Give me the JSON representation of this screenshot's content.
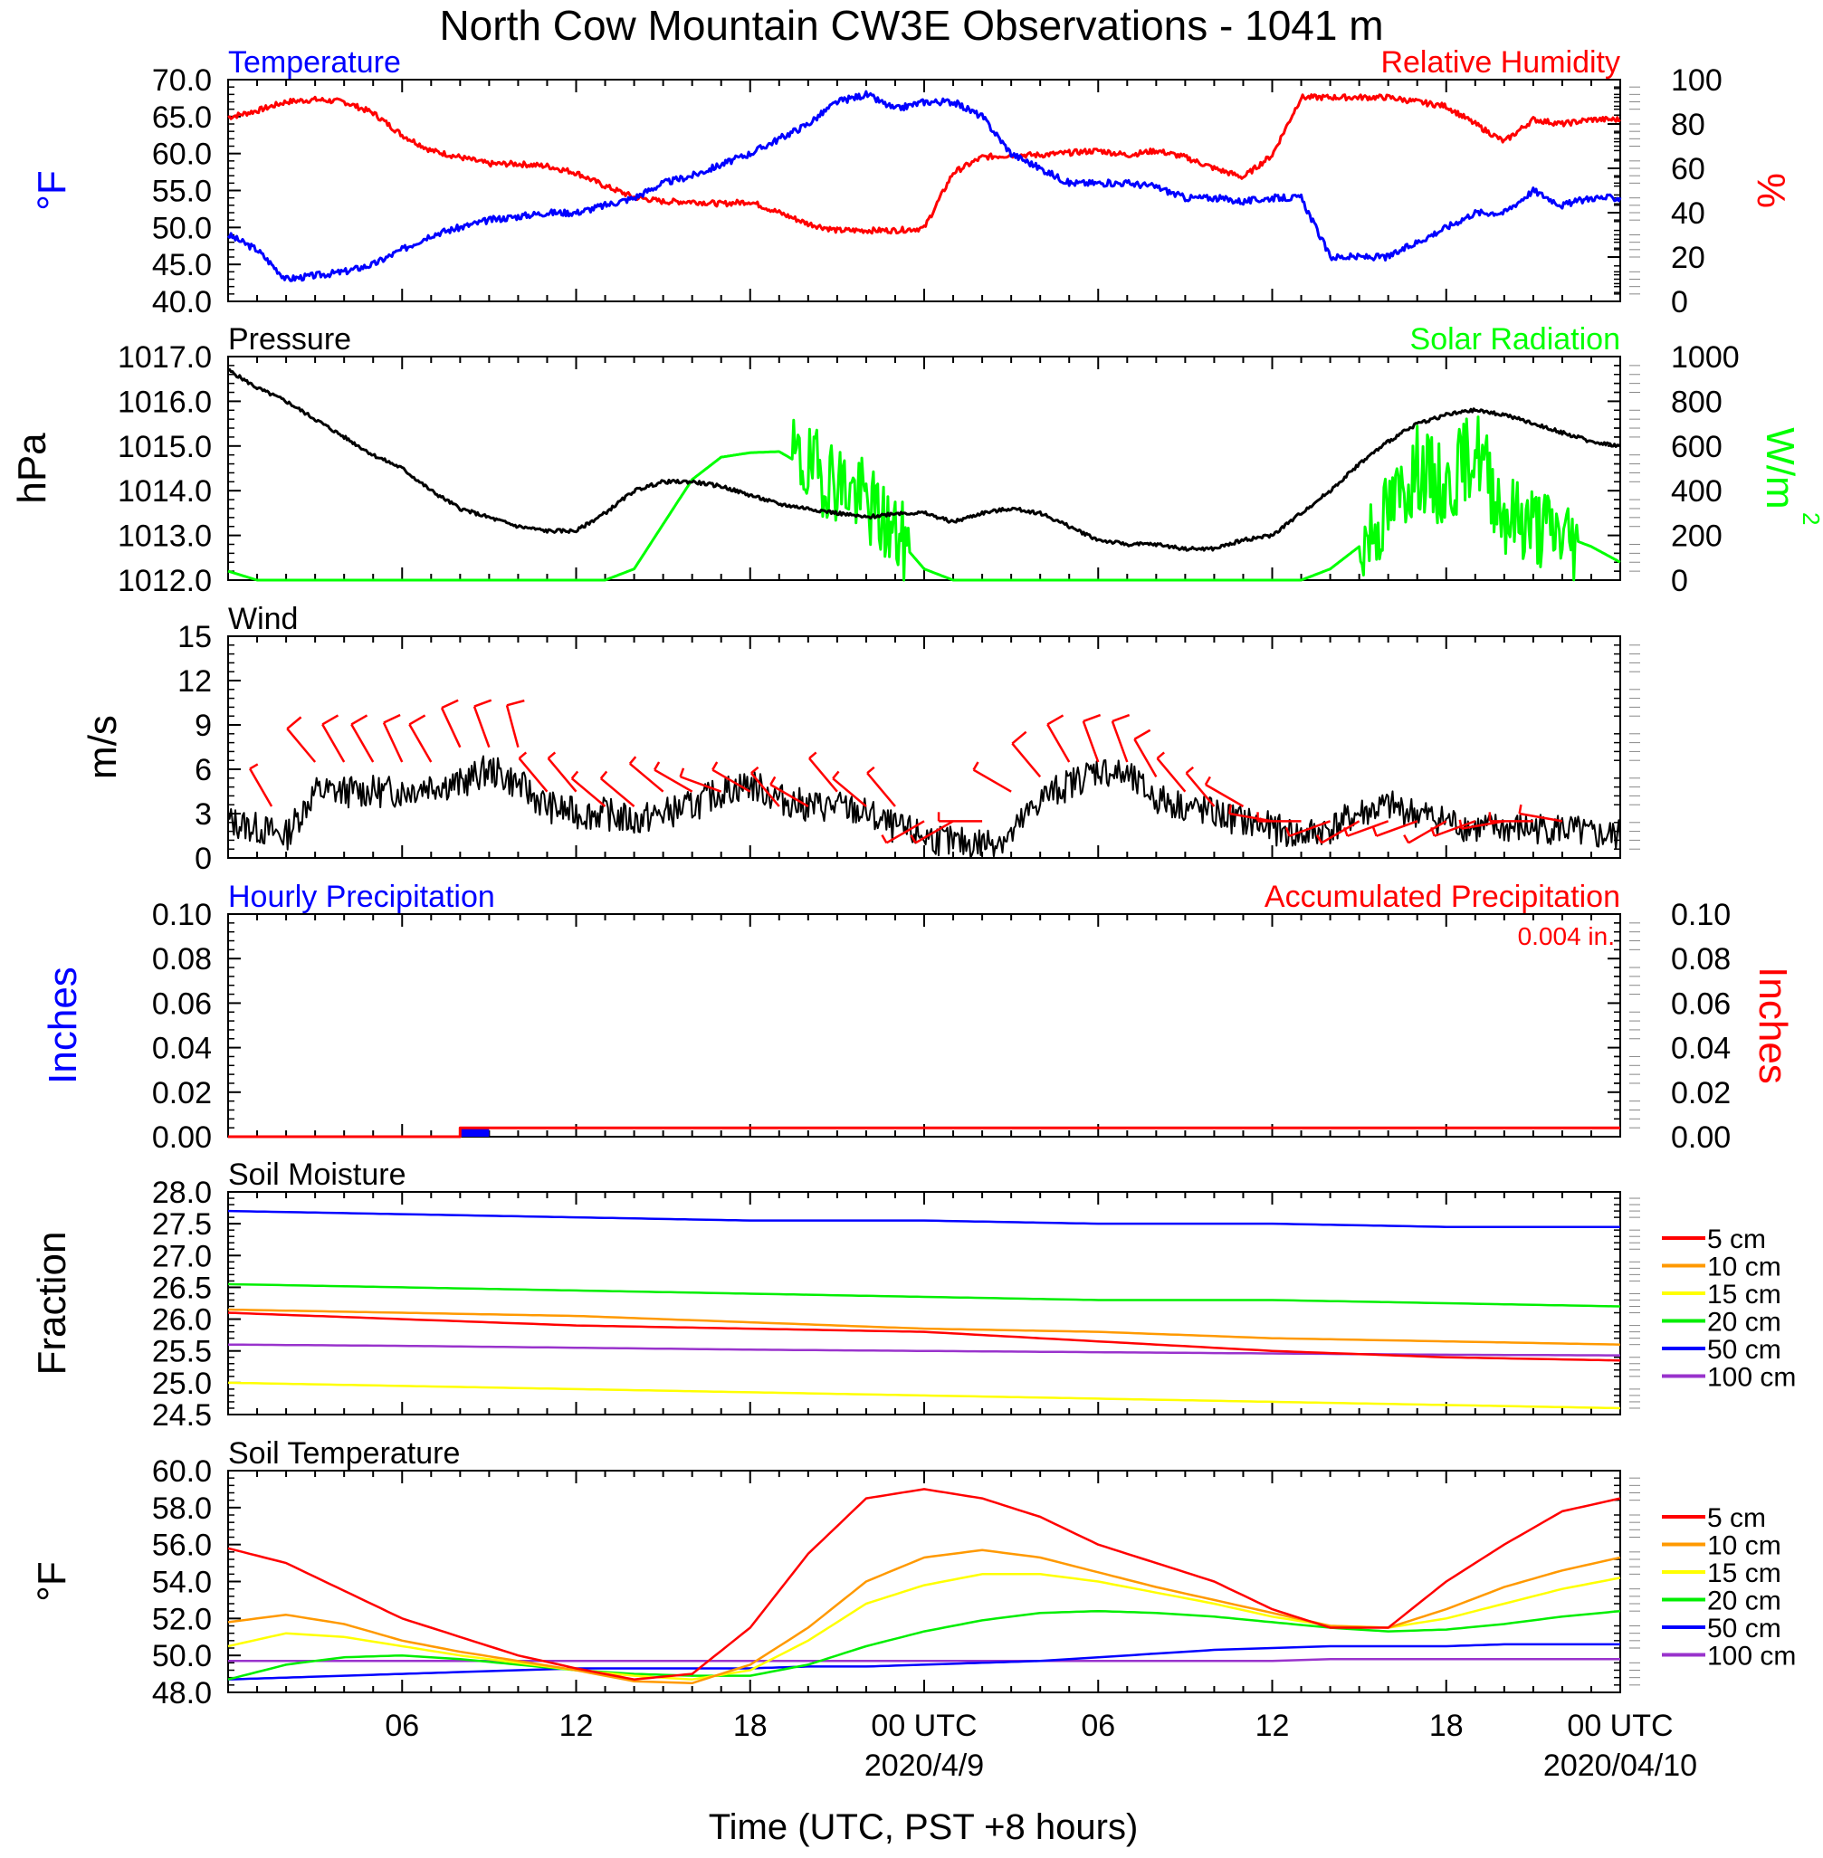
{
  "title": "North Cow Mountain CW3E Observations - 1041 m",
  "x_axis": {
    "label": "Time (UTC, PST +8 hours)",
    "ticks": [
      "06",
      "12",
      "18",
      "00 UTC",
      "06",
      "12",
      "18",
      "00 UTC"
    ],
    "date_labels": [
      "2020/4/9",
      "2020/04/10"
    ]
  },
  "colors": {
    "temperature": "#0000ff",
    "humidity": "#ff0000",
    "pressure": "#000000",
    "solar": "#00ff00",
    "wind": "#000000",
    "barb": "#ff0000",
    "hourly": "#0000ff",
    "accum": "#ff0000",
    "soil_5": "#ff0000",
    "soil_10": "#ff9900",
    "soil_15": "#ffff00",
    "soil_20": "#00ee00",
    "soil_50": "#0000ff",
    "soil_100": "#9933cc"
  },
  "chart_data": [
    {
      "type": "line",
      "left_title": "Temperature",
      "right_title": "Relative Humidity",
      "ylabel": "°F",
      "ylabel_right": "%",
      "yticks": [
        "70.0",
        "65.0",
        "60.0",
        "55.0",
        "50.0",
        "45.0",
        "40.0"
      ],
      "yticks_right": [
        "100",
        "80",
        "60",
        "40",
        "20",
        "0"
      ],
      "ylim": [
        40,
        70
      ],
      "ylim_right": [
        0,
        100
      ],
      "x_hours": [
        0,
        1,
        2,
        3,
        4,
        5,
        6,
        7,
        8,
        9,
        10,
        11,
        12,
        13,
        14,
        15,
        16,
        17,
        18,
        19,
        20,
        21,
        22,
        23,
        24,
        25,
        26,
        27,
        28,
        29,
        30,
        31,
        32,
        33,
        34,
        35,
        36,
        37,
        38,
        39,
        40,
        41,
        42,
        43,
        44,
        45,
        46,
        47,
        48
      ],
      "series": [
        {
          "name": "Temperature",
          "axis": "left",
          "values": [
            49,
            47,
            43,
            43.5,
            44,
            45,
            47,
            49,
            50,
            51,
            51.5,
            52,
            52,
            53,
            54,
            56,
            57,
            58.5,
            60,
            62,
            64,
            67,
            68,
            66,
            67,
            67,
            65,
            60,
            58,
            56,
            56,
            56,
            55.5,
            54,
            54,
            53.5,
            54,
            54,
            46,
            46,
            46,
            48,
            50,
            52,
            52,
            55,
            53,
            54,
            54
          ]
        },
        {
          "name": "Relative Humidity",
          "axis": "right",
          "values": [
            83,
            86,
            90,
            91,
            90,
            85,
            75,
            68,
            65,
            62,
            62,
            61,
            58,
            52,
            47,
            45,
            45,
            44,
            45,
            40,
            35,
            32,
            32,
            32,
            33,
            58,
            65,
            66,
            66,
            67,
            68,
            66,
            68,
            65,
            60,
            56,
            66,
            92,
            92,
            92,
            92,
            90,
            88,
            80,
            72,
            82,
            80,
            82,
            82
          ]
        }
      ]
    },
    {
      "type": "line",
      "left_title": "Pressure",
      "right_title": "Solar Radiation",
      "ylabel": "hPa",
      "ylabel_right": "W/m2",
      "yticks": [
        "1017.0",
        "1016.0",
        "1015.0",
        "1014.0",
        "1013.0",
        "1012.0"
      ],
      "yticks_right": [
        "1000",
        "800",
        "600",
        "400",
        "200",
        "0"
      ],
      "ylim": [
        1012,
        1017
      ],
      "ylim_right": [
        0,
        1000
      ],
      "x_hours": [
        0,
        1,
        2,
        3,
        4,
        5,
        6,
        7,
        8,
        9,
        10,
        11,
        12,
        13,
        14,
        15,
        16,
        17,
        18,
        19,
        20,
        21,
        22,
        23,
        24,
        25,
        26,
        27,
        28,
        29,
        30,
        31,
        32,
        33,
        34,
        35,
        36,
        37,
        38,
        39,
        40,
        41,
        42,
        43,
        44,
        45,
        46,
        47,
        48
      ],
      "series": [
        {
          "name": "Pressure",
          "axis": "left",
          "values": [
            1016.7,
            1016.3,
            1016,
            1015.6,
            1015.2,
            1014.8,
            1014.5,
            1014,
            1013.6,
            1013.4,
            1013.2,
            1013.1,
            1013.1,
            1013.5,
            1014,
            1014.2,
            1014.2,
            1014.1,
            1013.9,
            1013.7,
            1013.6,
            1013.5,
            1013.4,
            1013.5,
            1013.5,
            1013.3,
            1013.5,
            1013.6,
            1013.5,
            1013.2,
            1012.9,
            1012.8,
            1012.8,
            1012.7,
            1012.7,
            1012.9,
            1013.0,
            1013.5,
            1014,
            1014.6,
            1015.1,
            1015.5,
            1015.7,
            1015.8,
            1015.7,
            1015.5,
            1015.3,
            1015.1,
            1015
          ]
        },
        {
          "name": "Solar Radiation",
          "axis": "right",
          "values": [
            40,
            0,
            0,
            0,
            0,
            0,
            0,
            0,
            0,
            0,
            0,
            0,
            0,
            0,
            50,
            250,
            450,
            550,
            570,
            575,
            500,
            450,
            350,
            200,
            50,
            0,
            0,
            0,
            0,
            0,
            0,
            0,
            0,
            0,
            0,
            0,
            0,
            0,
            50,
            150,
            300,
            500,
            400,
            600,
            300,
            250,
            200,
            150,
            80
          ]
        }
      ]
    },
    {
      "type": "line",
      "left_title": "Wind",
      "ylabel": "m/s",
      "yticks": [
        "15",
        "12",
        "9",
        "6",
        "3",
        "0"
      ],
      "ylim": [
        0,
        15
      ],
      "x_hours": [
        0,
        1,
        2,
        3,
        4,
        5,
        6,
        7,
        8,
        9,
        10,
        11,
        12,
        13,
        14,
        15,
        16,
        17,
        18,
        19,
        20,
        21,
        22,
        23,
        24,
        25,
        26,
        27,
        28,
        29,
        30,
        31,
        32,
        33,
        34,
        35,
        36,
        37,
        38,
        39,
        40,
        41,
        42,
        43,
        44,
        45,
        46,
        47,
        48
      ],
      "series": [
        {
          "name": "Wind speed",
          "values": [
            2.5,
            2,
            1.5,
            4.5,
            4.5,
            4.5,
            4.5,
            5,
            5,
            6,
            5,
            3.5,
            3,
            3,
            2.5,
            3,
            3.5,
            4.5,
            5,
            4,
            3.5,
            3.5,
            3,
            2,
            1.5,
            1,
            1,
            1.5,
            4,
            5,
            6,
            5.5,
            4,
            3.5,
            3,
            2.5,
            2,
            1.5,
            2,
            3,
            3.5,
            3,
            2.5,
            2,
            2,
            2,
            2,
            1.5,
            1.5
          ]
        }
      ]
    },
    {
      "type": "line",
      "left_title": "Hourly Precipitation",
      "right_title": "Accumulated Precipitation",
      "annotation": "0.004 in.",
      "ylabel": "Inches",
      "ylabel_right": "Inches",
      "yticks": [
        "0.10",
        "0.08",
        "0.06",
        "0.04",
        "0.02",
        "0.00"
      ],
      "yticks_right": [
        "0.10",
        "0.08",
        "0.06",
        "0.04",
        "0.02",
        "0.00"
      ],
      "ylim": [
        0,
        0.1
      ],
      "hourly": {
        "start_hour": 8,
        "end_hour": 9,
        "value": 0.004
      },
      "accumulated": {
        "x_hours": [
          0,
          8,
          8,
          48
        ],
        "values": [
          0,
          0,
          0.004,
          0.004
        ]
      }
    },
    {
      "type": "line",
      "left_title": "Soil Moisture",
      "ylabel": "Fraction",
      "yticks": [
        "28.0",
        "27.5",
        "27.0",
        "26.5",
        "26.0",
        "25.5",
        "25.0",
        "24.5"
      ],
      "ylim": [
        24.5,
        28
      ],
      "x_hours": [
        0,
        6,
        12,
        18,
        24,
        30,
        36,
        42,
        48
      ],
      "series": [
        {
          "name": "5 cm",
          "values": [
            26.1,
            26.0,
            25.9,
            25.85,
            25.8,
            25.65,
            25.5,
            25.4,
            25.35
          ]
        },
        {
          "name": "10 cm",
          "values": [
            26.15,
            26.1,
            26.05,
            25.95,
            25.85,
            25.8,
            25.7,
            25.65,
            25.6
          ]
        },
        {
          "name": "15 cm",
          "values": [
            25.0,
            24.95,
            24.9,
            24.85,
            24.8,
            24.75,
            24.7,
            24.65,
            24.6
          ]
        },
        {
          "name": "20 cm",
          "values": [
            26.55,
            26.5,
            26.45,
            26.4,
            26.35,
            26.3,
            26.3,
            26.25,
            26.2
          ]
        },
        {
          "name": "50 cm",
          "values": [
            27.7,
            27.65,
            27.6,
            27.55,
            27.55,
            27.5,
            27.5,
            27.45,
            27.45
          ]
        },
        {
          "name": "100 cm",
          "values": [
            25.6,
            25.58,
            25.55,
            25.52,
            25.5,
            25.48,
            25.46,
            25.44,
            25.43
          ]
        }
      ]
    },
    {
      "type": "line",
      "left_title": "Soil Temperature",
      "ylabel": "°F",
      "yticks": [
        "60.0",
        "58.0",
        "56.0",
        "54.0",
        "52.0",
        "50.0",
        "48.0"
      ],
      "ylim": [
        48,
        60
      ],
      "x_hours": [
        0,
        2,
        4,
        6,
        8,
        10,
        12,
        14,
        16,
        18,
        20,
        22,
        24,
        26,
        28,
        30,
        32,
        34,
        36,
        38,
        40,
        42,
        44,
        46,
        48
      ],
      "series": [
        {
          "name": "5 cm",
          "values": [
            55.8,
            55,
            53.5,
            52,
            51,
            50,
            49.3,
            48.7,
            49,
            51.5,
            55.5,
            58.5,
            59,
            58.5,
            57.5,
            56,
            55,
            54,
            52.5,
            51.5,
            51.5,
            54,
            56,
            57.8,
            58.5
          ]
        },
        {
          "name": "10 cm",
          "values": [
            51.8,
            52.2,
            51.7,
            50.8,
            50.2,
            49.7,
            49.2,
            48.6,
            48.5,
            49.5,
            51.5,
            54,
            55.3,
            55.7,
            55.3,
            54.5,
            53.7,
            53,
            52.3,
            51.6,
            51.5,
            52.5,
            53.7,
            54.6,
            55.3
          ]
        },
        {
          "name": "15 cm",
          "values": [
            50.5,
            51.2,
            51,
            50.5,
            50,
            49.6,
            49.2,
            48.9,
            48.7,
            49.2,
            50.8,
            52.8,
            53.8,
            54.4,
            54.4,
            54,
            53.4,
            52.8,
            52.1,
            51.6,
            51.5,
            52,
            52.8,
            53.6,
            54.2
          ]
        },
        {
          "name": "20 cm",
          "values": [
            48.7,
            49.5,
            49.9,
            50,
            49.8,
            49.5,
            49.2,
            49,
            48.9,
            48.9,
            49.5,
            50.5,
            51.3,
            51.9,
            52.3,
            52.4,
            52.3,
            52.1,
            51.8,
            51.5,
            51.3,
            51.4,
            51.7,
            52.1,
            52.4
          ]
        },
        {
          "name": "50 cm",
          "values": [
            48.7,
            48.8,
            48.9,
            49,
            49.1,
            49.2,
            49.3,
            49.3,
            49.3,
            49.3,
            49.4,
            49.4,
            49.5,
            49.6,
            49.7,
            49.9,
            50.1,
            50.3,
            50.4,
            50.5,
            50.5,
            50.5,
            50.6,
            50.6,
            50.6
          ]
        },
        {
          "name": "100 cm",
          "values": [
            49.7,
            49.7,
            49.7,
            49.7,
            49.7,
            49.7,
            49.7,
            49.7,
            49.7,
            49.7,
            49.7,
            49.7,
            49.7,
            49.7,
            49.7,
            49.7,
            49.7,
            49.7,
            49.7,
            49.8,
            49.8,
            49.8,
            49.8,
            49.8,
            49.8
          ]
        }
      ]
    }
  ],
  "wind_barbs": [
    {
      "hour": 1.5,
      "dir": 330,
      "speed": 3
    },
    {
      "hour": 3,
      "dir": 320,
      "speed": 6
    },
    {
      "hour": 4,
      "dir": 330,
      "speed": 6
    },
    {
      "hour": 5,
      "dir": 330,
      "speed": 6
    },
    {
      "hour": 6,
      "dir": 335,
      "speed": 6
    },
    {
      "hour": 7,
      "dir": 330,
      "speed": 6
    },
    {
      "hour": 8,
      "dir": 335,
      "speed": 7
    },
    {
      "hour": 9,
      "dir": 340,
      "speed": 7
    },
    {
      "hour": 10,
      "dir": 345,
      "speed": 7
    },
    {
      "hour": 11,
      "dir": 320,
      "speed": 4
    },
    {
      "hour": 12,
      "dir": 320,
      "speed": 4
    },
    {
      "hour": 13,
      "dir": 310,
      "speed": 3
    },
    {
      "hour": 14,
      "dir": 310,
      "speed": 3
    },
    {
      "hour": 15,
      "dir": 310,
      "speed": 4
    },
    {
      "hour": 16,
      "dir": 300,
      "speed": 4
    },
    {
      "hour": 17,
      "dir": 290,
      "speed": 4
    },
    {
      "hour": 18,
      "dir": 300,
      "speed": 4
    },
    {
      "hour": 19,
      "dir": 320,
      "speed": 3
    },
    {
      "hour": 20,
      "dir": 300,
      "speed": 3
    },
    {
      "hour": 21,
      "dir": 320,
      "speed": 4
    },
    {
      "hour": 22,
      "dir": 310,
      "speed": 3
    },
    {
      "hour": 23,
      "dir": 320,
      "speed": 3
    },
    {
      "hour": 24,
      "dir": 240,
      "speed": 2
    },
    {
      "hour": 25,
      "dir": 240,
      "speed": 2
    },
    {
      "hour": 26,
      "dir": 270,
      "speed": 2
    },
    {
      "hour": 27,
      "dir": 300,
      "speed": 4
    },
    {
      "hour": 28,
      "dir": 320,
      "speed": 5
    },
    {
      "hour": 29,
      "dir": 330,
      "speed": 6
    },
    {
      "hour": 30,
      "dir": 340,
      "speed": 6
    },
    {
      "hour": 31,
      "dir": 340,
      "speed": 6
    },
    {
      "hour": 32,
      "dir": 330,
      "speed": 5
    },
    {
      "hour": 33,
      "dir": 320,
      "speed": 4
    },
    {
      "hour": 34,
      "dir": 320,
      "speed": 3
    },
    {
      "hour": 35,
      "dir": 300,
      "speed": 3
    },
    {
      "hour": 36,
      "dir": 280,
      "speed": 2
    },
    {
      "hour": 37,
      "dir": 270,
      "speed": 2
    },
    {
      "hour": 38,
      "dir": 250,
      "speed": 2
    },
    {
      "hour": 39,
      "dir": 240,
      "speed": 2
    },
    {
      "hour": 40,
      "dir": 250,
      "speed": 2
    },
    {
      "hour": 41,
      "dir": 250,
      "speed": 2
    },
    {
      "hour": 42,
      "dir": 240,
      "speed": 2
    },
    {
      "hour": 43,
      "dir": 250,
      "speed": 2
    },
    {
      "hour": 44,
      "dir": 260,
      "speed": 2
    },
    {
      "hour": 45,
      "dir": 270,
      "speed": 2
    },
    {
      "hour": 46,
      "dir": 280,
      "speed": 2
    }
  ],
  "legend_soil": [
    "5 cm",
    "10 cm",
    "15 cm",
    "20 cm",
    "50 cm",
    "100 cm"
  ]
}
